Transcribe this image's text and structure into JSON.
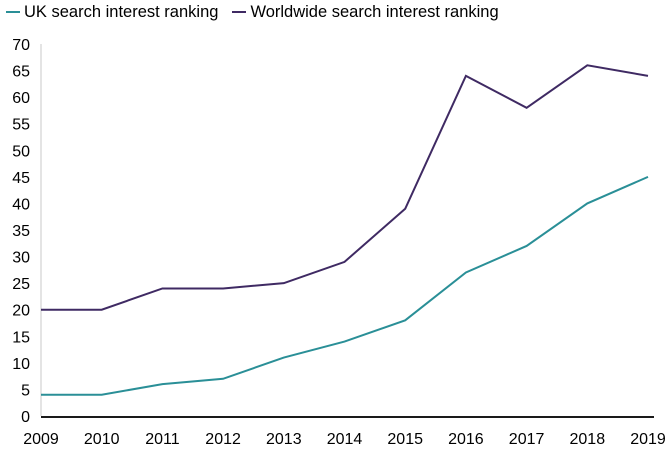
{
  "chart_data": {
    "type": "line",
    "title": "",
    "xlabel": "",
    "ylabel": "",
    "x": [
      "2009",
      "2010",
      "2011",
      "2012",
      "2013",
      "2014",
      "2015",
      "2016",
      "2017",
      "2018",
      "2019"
    ],
    "ylim": [
      0,
      70
    ],
    "yticks": [
      "0",
      "5",
      "10",
      "15",
      "20",
      "25",
      "30",
      "35",
      "40",
      "45",
      "50",
      "55",
      "60",
      "65",
      "70"
    ],
    "grid": false,
    "legend_position": "top-left",
    "series": [
      {
        "name": "UK search interest ranking",
        "color": "#2a8f97",
        "values": [
          4,
          4,
          6,
          7,
          11,
          14,
          18,
          27,
          32,
          40,
          45
        ]
      },
      {
        "name": "Worldwide search interest ranking",
        "color": "#3f2a63",
        "values": [
          20,
          20,
          24,
          24,
          25,
          29,
          39,
          64,
          58,
          66,
          64
        ]
      }
    ]
  }
}
